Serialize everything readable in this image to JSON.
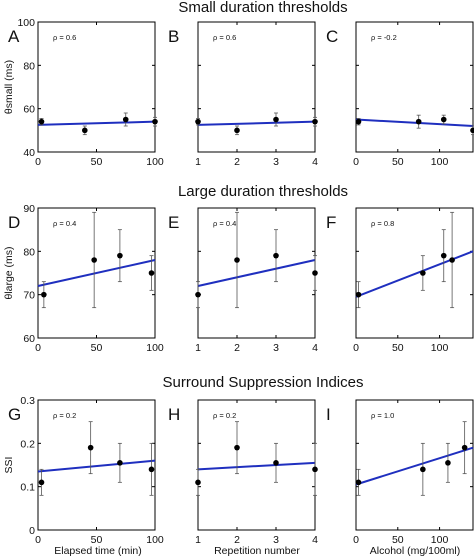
{
  "row_titles": [
    "Small duration thresholds",
    "Large duration thresholds",
    "Surround Suppression Indices"
  ],
  "colors": {
    "fit_line": "#1f2fbf",
    "points": "#000000",
    "error_bars": "#555555"
  },
  "chart_data": [
    {
      "type": "scatter",
      "letter": "A",
      "rho": "ρ = 0.6",
      "ylabel": "θsmall (ms)",
      "xlim": [
        0,
        100
      ],
      "ylim": [
        40,
        100
      ],
      "xticks": [
        "0",
        "50",
        "100"
      ],
      "yticks": [
        "40",
        "60",
        "80",
        "100"
      ],
      "x": [
        3,
        40,
        75,
        100
      ],
      "y": [
        54,
        50,
        55,
        54
      ],
      "yerr": [
        1.5,
        2,
        3,
        2
      ],
      "fit": {
        "x": [
          0,
          100
        ],
        "y": [
          52.5,
          54
        ]
      }
    },
    {
      "type": "scatter",
      "letter": "B",
      "rho": "ρ = 0.6",
      "ylabel": "",
      "xlim": [
        1,
        4
      ],
      "ylim": [
        40,
        100
      ],
      "xticks": [
        "1",
        "2",
        "3",
        "4"
      ],
      "yticks": [],
      "x": [
        1,
        2,
        3,
        4
      ],
      "y": [
        54,
        50,
        55,
        54
      ],
      "yerr": [
        1.5,
        2,
        3,
        2
      ],
      "fit": {
        "x": [
          1,
          4
        ],
        "y": [
          52.5,
          54
        ]
      }
    },
    {
      "type": "scatter",
      "letter": "C",
      "rho": "ρ = -0.2",
      "ylabel": "",
      "xlim": [
        0,
        140
      ],
      "ylim": [
        40,
        100
      ],
      "xticks": [
        "0",
        "50",
        "100"
      ],
      "yticks": [],
      "x": [
        3,
        75,
        105,
        140
      ],
      "y": [
        54,
        54,
        55,
        50
      ],
      "yerr": [
        1.5,
        3,
        2,
        2
      ],
      "fit": {
        "x": [
          0,
          140
        ],
        "y": [
          55,
          52
        ]
      }
    },
    {
      "type": "scatter",
      "letter": "D",
      "rho": "ρ = 0.4",
      "ylabel": "θlarge (ms)",
      "xlim": [
        0,
        100
      ],
      "ylim": [
        60,
        90
      ],
      "xticks": [
        "0",
        "50",
        "100"
      ],
      "yticks": [
        "60",
        "70",
        "80",
        "90"
      ],
      "x": [
        5,
        48,
        70,
        97
      ],
      "y": [
        70,
        78,
        79,
        75
      ],
      "yerr": [
        3,
        11,
        6,
        4
      ],
      "fit": {
        "x": [
          0,
          100
        ],
        "y": [
          72,
          78
        ]
      }
    },
    {
      "type": "scatter",
      "letter": "E",
      "rho": "ρ = 0.4",
      "ylabel": "",
      "xlim": [
        1,
        4
      ],
      "ylim": [
        60,
        90
      ],
      "xticks": [
        "1",
        "2",
        "3",
        "4"
      ],
      "yticks": [],
      "x": [
        1,
        2,
        3,
        4
      ],
      "y": [
        70,
        78,
        79,
        75
      ],
      "yerr": [
        3,
        11,
        6,
        4
      ],
      "fit": {
        "x": [
          1,
          4
        ],
        "y": [
          72,
          78
        ]
      }
    },
    {
      "type": "scatter",
      "letter": "F",
      "rho": "ρ = 0.8",
      "ylabel": "",
      "xlim": [
        0,
        140
      ],
      "ylim": [
        60,
        90
      ],
      "xticks": [
        "0",
        "50",
        "100"
      ],
      "yticks": [],
      "x": [
        3,
        80,
        105,
        115
      ],
      "y": [
        70,
        75,
        79,
        78
      ],
      "yerr": [
        3,
        4,
        6,
        11
      ],
      "fit": {
        "x": [
          0,
          140
        ],
        "y": [
          69.5,
          80
        ]
      }
    },
    {
      "type": "scatter",
      "letter": "G",
      "rho": "ρ = 0.2",
      "ylabel": "SSI",
      "xlim": [
        0,
        100
      ],
      "ylim": [
        0,
        0.3
      ],
      "xticks": [
        "0",
        "50",
        "100"
      ],
      "yticks": [
        "0",
        "0.1",
        "0.2",
        "0.3"
      ],
      "x": [
        3,
        45,
        70,
        97
      ],
      "y": [
        0.11,
        0.19,
        0.155,
        0.14
      ],
      "yerr": [
        0.03,
        0.06,
        0.045,
        0.06
      ],
      "fit": {
        "x": [
          0,
          100
        ],
        "y": [
          0.135,
          0.16
        ]
      }
    },
    {
      "type": "scatter",
      "letter": "H",
      "rho": "ρ = 0.2",
      "ylabel": "",
      "xlim": [
        1,
        4
      ],
      "ylim": [
        0,
        0.3
      ],
      "xticks": [
        "1",
        "2",
        "3",
        "4"
      ],
      "yticks": [],
      "x": [
        1,
        2,
        3,
        4
      ],
      "y": [
        0.11,
        0.19,
        0.155,
        0.14
      ],
      "yerr": [
        0.03,
        0.06,
        0.045,
        0.06
      ],
      "fit": {
        "x": [
          1,
          4
        ],
        "y": [
          0.14,
          0.155
        ]
      }
    },
    {
      "type": "scatter",
      "letter": "I",
      "rho": "ρ = 1.0",
      "ylabel": "",
      "xlim": [
        0,
        140
      ],
      "ylim": [
        0,
        0.3
      ],
      "xticks": [
        "0",
        "50",
        "100"
      ],
      "yticks": [],
      "x": [
        3,
        80,
        110,
        130
      ],
      "y": [
        0.11,
        0.14,
        0.155,
        0.19
      ],
      "yerr": [
        0.03,
        0.06,
        0.045,
        0.06
      ],
      "fit": {
        "x": [
          0,
          140
        ],
        "y": [
          0.105,
          0.19
        ]
      }
    }
  ],
  "x_axis_labels": [
    "Elapsed time (min)",
    "Repetition number",
    "Alcohol (mg/100ml)"
  ]
}
